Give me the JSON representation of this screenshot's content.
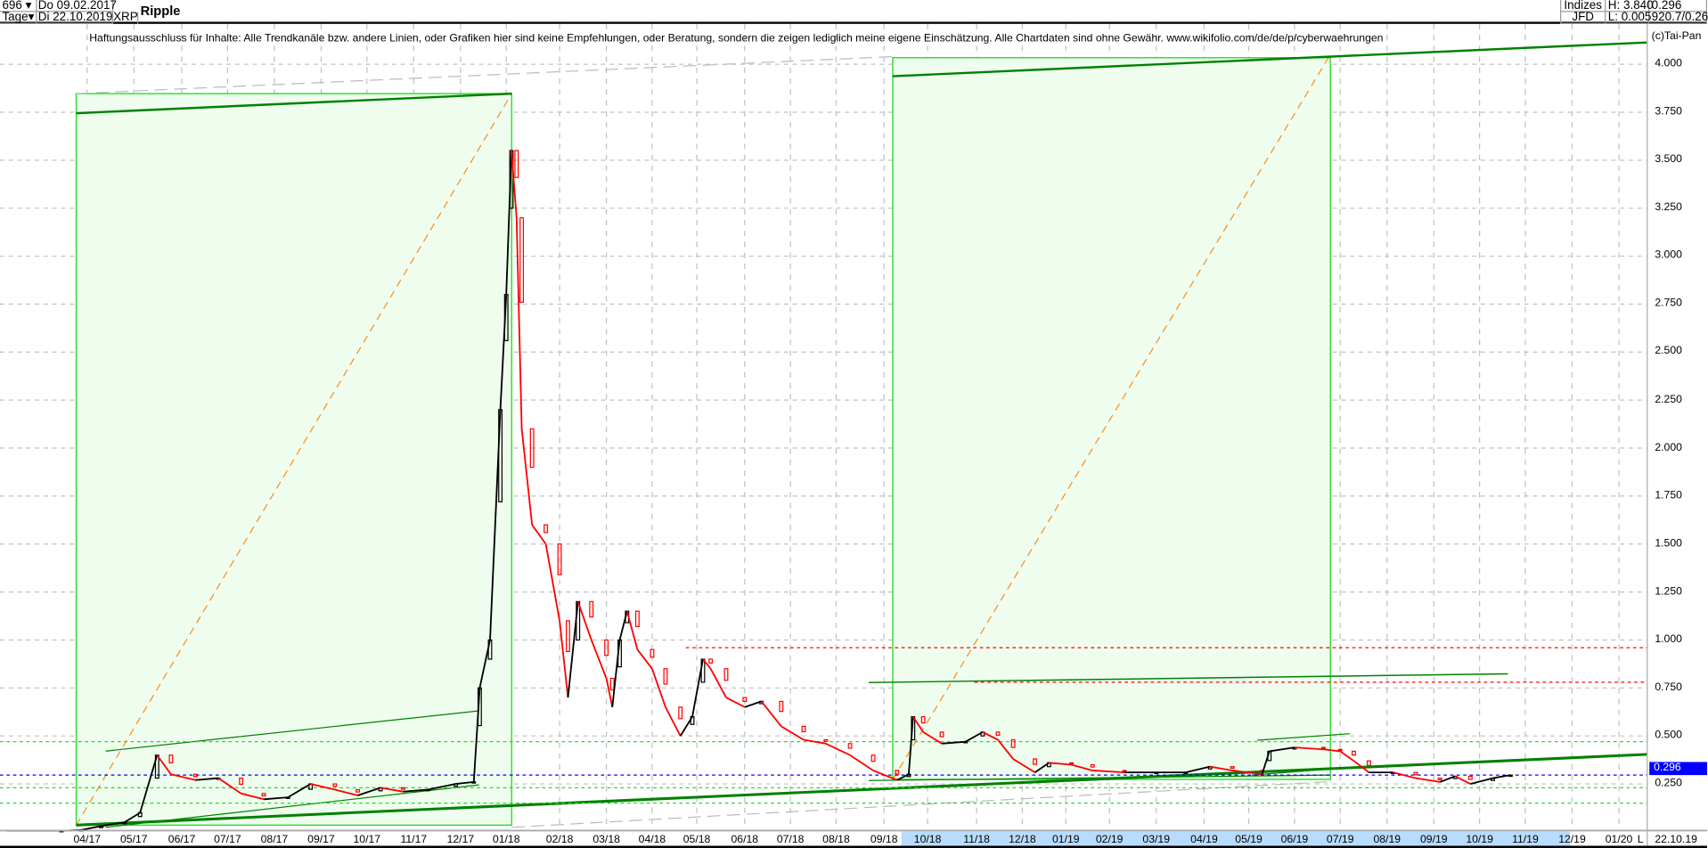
{
  "header": {
    "bars_count": "696",
    "period": "Tage",
    "start_date": "Do 09.02.2017",
    "end_date": "Di 22.10.2019",
    "symbol": "XRP",
    "title": "Ripple",
    "source_top": "Indizes",
    "source_bottom": "JFD",
    "high": "H: 3.840",
    "low": "L: 0.005",
    "last": "0.296",
    "extra": "920.7/0.26"
  },
  "disclaimer": "Haftungsausschluss für Inhalte: Alle Trendkanäle bzw. andere Linien, oder Grafiken hier sind keine Empfehlungen, oder Beratung, sondern die zeigen lediglich meine eigene Einschätzung. Alle Chartdaten sind ohne Gewähr.  www.wikifolio.com/de/de/p/cyberwaehrungen",
  "copyright": "(c)Tai-Pan",
  "footer": {
    "scale_mode": "L",
    "current_date": "22.10.19"
  },
  "colors": {
    "up": "#000000",
    "down": "#ff0000",
    "trend": "#008000",
    "zone_fill": "#eefdee",
    "zone_border": "#33dd33",
    "projection": "#ff8c1a",
    "last_price": "#0000ff"
  },
  "chart_data": {
    "type": "line",
    "title": "Ripple",
    "ylim": [
      0,
      4.1
    ],
    "grid": true,
    "y_scale": "linear",
    "y_ticks": [
      "4.000",
      "3.750",
      "3.500",
      "3.250",
      "3.000",
      "2.750",
      "2.500",
      "2.250",
      "2.000",
      "1.750",
      "1.500",
      "1.250",
      "1.000",
      "0.750",
      "0.500",
      "0.250"
    ],
    "x_ticks": [
      "04/17",
      "05/17",
      "06/17",
      "07/17",
      "08/17",
      "09/17",
      "10/17",
      "11/17",
      "12/17",
      "01/18",
      "02/18",
      "03/18",
      "04/18",
      "05/18",
      "06/18",
      "07/18",
      "08/18",
      "09/18",
      "10/18",
      "11/18",
      "12/18",
      "01/19",
      "02/19",
      "03/19",
      "04/19",
      "05/19",
      "06/19",
      "07/19",
      "08/19",
      "09/19",
      "10/19",
      "11/19",
      "12/19",
      "01/20"
    ],
    "last_price": 0.296,
    "horizontal_levels": [
      {
        "value": 0.96,
        "color": "red"
      },
      {
        "value": 0.78,
        "color": "red"
      },
      {
        "value": 0.47,
        "color": "green"
      },
      {
        "value": 0.296,
        "color": "blue"
      },
      {
        "value": 0.23,
        "color": "green"
      },
      {
        "value": 0.15,
        "color": "green"
      }
    ],
    "series": [
      {
        "x": [
          "2017-02-09",
          "2017-03-15",
          "2017-03-28",
          "2017-04-10",
          "2017-04-25",
          "2017-05-05",
          "2017-05-16",
          "2017-05-25",
          "2017-06-10",
          "2017-06-25",
          "2017-07-10",
          "2017-07-25",
          "2017-08-10",
          "2017-08-25",
          "2017-09-10",
          "2017-09-25",
          "2017-10-10",
          "2017-10-25",
          "2017-11-10",
          "2017-11-28",
          "2017-12-10",
          "2017-12-14",
          "2017-12-21",
          "2017-12-28",
          "2018-01-01",
          "2018-01-04",
          "2018-01-07",
          "2018-01-10",
          "2018-01-16",
          "2018-01-24",
          "2018-02-01",
          "2018-02-06",
          "2018-02-12",
          "2018-02-20",
          "2018-03-01",
          "2018-03-05",
          "2018-03-10",
          "2018-03-15",
          "2018-03-22",
          "2018-04-01",
          "2018-04-10",
          "2018-04-20",
          "2018-04-28",
          "2018-05-05",
          "2018-05-10",
          "2018-05-20",
          "2018-06-01",
          "2018-06-12",
          "2018-06-25",
          "2018-07-10",
          "2018-07-25",
          "2018-08-10",
          "2018-08-25",
          "2018-09-10",
          "2018-09-18",
          "2018-09-21",
          "2018-09-28",
          "2018-10-10",
          "2018-10-25",
          "2018-11-05",
          "2018-11-15",
          "2018-11-25",
          "2018-12-10",
          "2018-12-20",
          "2019-01-05",
          "2019-01-20",
          "2019-02-10",
          "2019-03-01",
          "2019-03-20",
          "2019-04-05",
          "2019-04-20",
          "2019-05-10",
          "2019-05-15",
          "2019-06-01",
          "2019-06-20",
          "2019-07-01",
          "2019-07-10",
          "2019-07-20",
          "2019-08-05",
          "2019-08-20",
          "2019-09-05",
          "2019-09-15",
          "2019-09-25",
          "2019-10-10",
          "2019-10-22"
        ],
        "y": [
          0.006,
          0.006,
          0.01,
          0.03,
          0.05,
          0.1,
          0.4,
          0.3,
          0.27,
          0.28,
          0.2,
          0.17,
          0.18,
          0.25,
          0.22,
          0.19,
          0.23,
          0.21,
          0.22,
          0.25,
          0.26,
          0.75,
          1.0,
          2.2,
          2.8,
          3.55,
          3.2,
          2.1,
          1.6,
          1.5,
          1.1,
          0.7,
          1.2,
          1.0,
          0.8,
          0.65,
          1.0,
          1.15,
          0.95,
          0.85,
          0.65,
          0.5,
          0.6,
          0.9,
          0.85,
          0.7,
          0.65,
          0.68,
          0.55,
          0.48,
          0.46,
          0.4,
          0.32,
          0.27,
          0.3,
          0.6,
          0.52,
          0.46,
          0.47,
          0.52,
          0.48,
          0.38,
          0.31,
          0.36,
          0.35,
          0.32,
          0.31,
          0.31,
          0.31,
          0.34,
          0.32,
          0.3,
          0.42,
          0.44,
          0.43,
          0.42,
          0.37,
          0.31,
          0.31,
          0.28,
          0.26,
          0.29,
          0.25,
          0.28,
          0.296
        ]
      }
    ]
  }
}
